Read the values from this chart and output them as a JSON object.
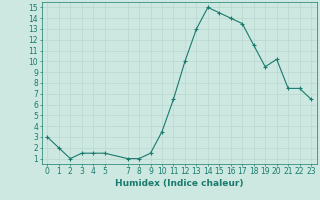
{
  "x": [
    0,
    1,
    2,
    3,
    4,
    5,
    7,
    8,
    9,
    10,
    11,
    12,
    13,
    14,
    15,
    16,
    17,
    18,
    19,
    20,
    21,
    22,
    23
  ],
  "y": [
    3.0,
    2.0,
    1.0,
    1.5,
    1.5,
    1.5,
    1.0,
    1.0,
    1.5,
    3.5,
    6.5,
    10.0,
    13.0,
    15.0,
    14.5,
    14.0,
    13.5,
    11.5,
    9.5,
    10.2,
    7.5,
    7.5,
    6.5
  ],
  "line_color": "#1a7a6e",
  "marker": "+",
  "markersize": 3.5,
  "linewidth": 0.8,
  "background_color": "#cce8e0",
  "grid_color": "#b8d8d0",
  "xlabel": "Humidex (Indice chaleur)",
  "xlabel_fontsize": 6.5,
  "tick_fontsize": 5.5,
  "xlim": [
    -0.5,
    23.5
  ],
  "ylim": [
    0.5,
    15.5
  ],
  "yticks": [
    1,
    2,
    3,
    4,
    5,
    6,
    7,
    8,
    9,
    10,
    11,
    12,
    13,
    14,
    15
  ],
  "xticks": [
    0,
    1,
    2,
    3,
    4,
    5,
    7,
    8,
    9,
    10,
    11,
    12,
    13,
    14,
    15,
    16,
    17,
    18,
    19,
    20,
    21,
    22,
    23
  ]
}
